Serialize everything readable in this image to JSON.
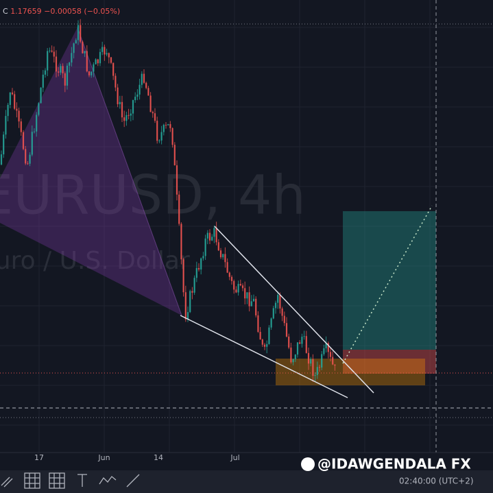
{
  "header": {
    "close_label": "C",
    "close": "1.17659",
    "change": "−0.00058",
    "change_pct": "(−0.05%)"
  },
  "watermark": {
    "symbol": "EURUSD, 4h",
    "description": "Euro / U.S. Dollar"
  },
  "time_axis": {
    "labels": [
      "17",
      "Jun",
      "14",
      "Jul"
    ]
  },
  "footer": {
    "clock": "02:40:00 (UTC+2)"
  },
  "credit": "@IDAWGENDALA FX"
}
